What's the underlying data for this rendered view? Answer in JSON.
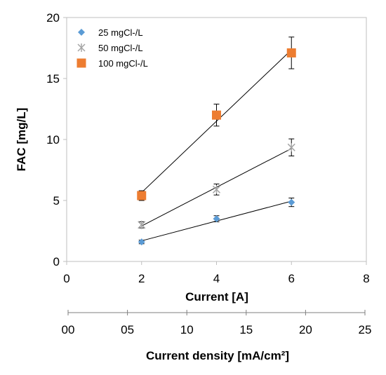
{
  "chart_data": {
    "type": "scatter",
    "xlabel": "Current [A]",
    "ylabel": "FAC [mg/L]",
    "xlim": [
      0,
      8
    ],
    "ylim": [
      0,
      20
    ],
    "x_ticks": [
      "0",
      "2",
      "4",
      "6",
      "8"
    ],
    "y_ticks": [
      "0",
      "5",
      "10",
      "15",
      "20"
    ],
    "secondary_xlabel": "Current density [mA/cm²]",
    "secondary_x_ticks": [
      "00",
      "05",
      "10",
      "15",
      "20",
      "25"
    ],
    "secondary_xlim": [
      0,
      25
    ],
    "grid": false,
    "legend_position": "top-left",
    "trendlines": true,
    "series": [
      {
        "name": "25 mgCl-/L",
        "marker": "diamond",
        "color": "#5B9BD5",
        "x": [
          2,
          4,
          6
        ],
        "y": [
          1.6,
          3.5,
          4.85
        ],
        "error": [
          0.15,
          0.25,
          0.35
        ]
      },
      {
        "name": "50 mgCl-/L",
        "marker": "star",
        "color": "#A5A5A5",
        "x": [
          2,
          4,
          6
        ],
        "y": [
          3.0,
          5.9,
          9.35
        ],
        "error": [
          0.25,
          0.45,
          0.7
        ]
      },
      {
        "name": "100 mgCl-/L",
        "marker": "square",
        "color": "#ED7D31",
        "x": [
          2,
          4,
          6
        ],
        "y": [
          5.4,
          12.0,
          17.1
        ],
        "error": [
          0.4,
          0.9,
          1.3
        ]
      }
    ]
  }
}
